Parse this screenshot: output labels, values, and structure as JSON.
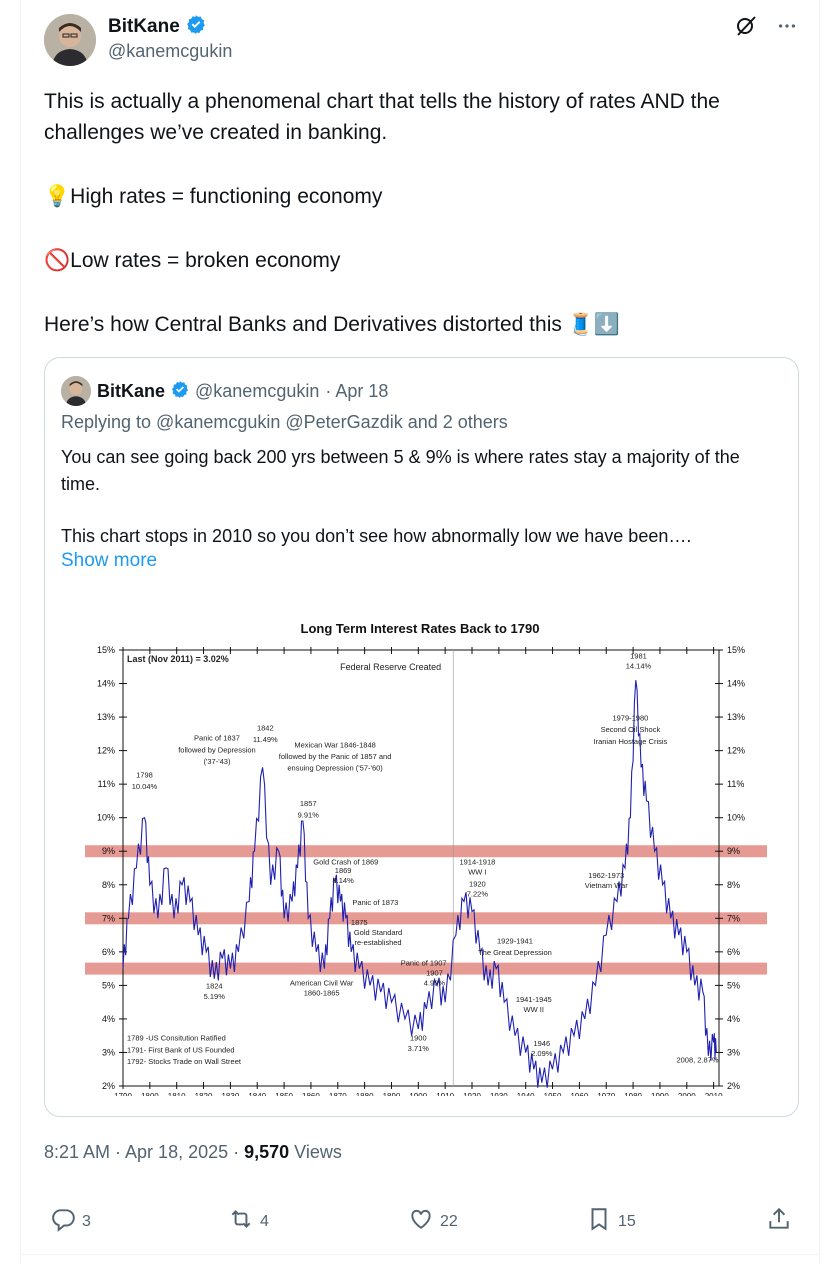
{
  "author": {
    "name": "BitKane",
    "handle": "@kanemcgukin"
  },
  "post": {
    "line1": "This is actually a phenomenal chart that tells the history of rates AND the challenges we’ve created in banking.",
    "line2": "💡High rates  = functioning economy",
    "line3": "🚫Low rates = broken economy",
    "line4": "Here’s how Central Banks and Derivatives distorted this 🧵⬇️"
  },
  "quote": {
    "name": "BitKane",
    "handle": "@kanemcgukin",
    "date": "· Apr 18",
    "reply": "Replying to @kanemcgukin @PeterGazdik and 2 others",
    "text1": "You can see going back 200 yrs between 5 & 9% is where rates stay a majority of the time.",
    "text2": "This chart stops in 2010 so you don’t see how abnormally low we have been….",
    "show_more": "Show more"
  },
  "chart_data": {
    "type": "line",
    "title": "Long Term Interest Rates Back to 1790",
    "xlim": [
      1790,
      2012
    ],
    "ylim": [
      2,
      15
    ],
    "x_ticks": [
      1790,
      1800,
      1810,
      1820,
      1830,
      1840,
      1850,
      1860,
      1870,
      1880,
      1890,
      1900,
      1910,
      1920,
      1930,
      1940,
      1950,
      1960,
      1970,
      1980,
      1990,
      2000,
      2010
    ],
    "y_ticks": [
      "2%",
      "3%",
      "4%",
      "5%",
      "6%",
      "7%",
      "8%",
      "9%",
      "10%",
      "11%",
      "12%",
      "13%",
      "14%",
      "15%"
    ],
    "bands": [
      9,
      7,
      5.5
    ],
    "points": [
      [
        1790,
        5.5
      ],
      [
        1792,
        7
      ],
      [
        1795,
        8.5
      ],
      [
        1798,
        10
      ],
      [
        1800,
        8
      ],
      [
        1803,
        7
      ],
      [
        1806,
        8.5
      ],
      [
        1809,
        7
      ],
      [
        1812,
        8
      ],
      [
        1815,
        7.5
      ],
      [
        1818,
        6.5
      ],
      [
        1821,
        6
      ],
      [
        1824,
        5.2
      ],
      [
        1827,
        5.8
      ],
      [
        1830,
        5.5
      ],
      [
        1833,
        6
      ],
      [
        1837,
        7.5
      ],
      [
        1839,
        9
      ],
      [
        1842,
        11.5
      ],
      [
        1845,
        8
      ],
      [
        1848,
        9
      ],
      [
        1850,
        7
      ],
      [
        1853,
        7.5
      ],
      [
        1855,
        8.5
      ],
      [
        1857,
        9.9
      ],
      [
        1859,
        7
      ],
      [
        1862,
        6
      ],
      [
        1865,
        5.5
      ],
      [
        1867,
        7
      ],
      [
        1869,
        8.1
      ],
      [
        1871,
        7.5
      ],
      [
        1873,
        7
      ],
      [
        1875,
        6
      ],
      [
        1878,
        5.5
      ],
      [
        1882,
        5
      ],
      [
        1886,
        4.8
      ],
      [
        1890,
        4.5
      ],
      [
        1895,
        4
      ],
      [
        1900,
        3.7
      ],
      [
        1903,
        4.3
      ],
      [
        1907,
        5
      ],
      [
        1910,
        4.5
      ],
      [
        1914,
        6.5
      ],
      [
        1917,
        7.5
      ],
      [
        1920,
        7.2
      ],
      [
        1923,
        6
      ],
      [
        1926,
        5
      ],
      [
        1929,
        5.5
      ],
      [
        1932,
        4.5
      ],
      [
        1936,
        3.5
      ],
      [
        1940,
        3
      ],
      [
        1943,
        2.5
      ],
      [
        1946,
        2.1
      ],
      [
        1950,
        2.5
      ],
      [
        1954,
        3
      ],
      [
        1958,
        3.5
      ],
      [
        1962,
        4
      ],
      [
        1966,
        5
      ],
      [
        1970,
        6.5
      ],
      [
        1974,
        7.5
      ],
      [
        1977,
        8.5
      ],
      [
        1979,
        10
      ],
      [
        1981,
        14.1
      ],
      [
        1983,
        11.5
      ],
      [
        1985,
        10.5
      ],
      [
        1988,
        9
      ],
      [
        1991,
        8
      ],
      [
        1994,
        7
      ],
      [
        1997,
        6.5
      ],
      [
        2000,
        6
      ],
      [
        2003,
        5
      ],
      [
        2006,
        4.8
      ],
      [
        2008,
        2.9
      ],
      [
        2010,
        3.3
      ],
      [
        2011,
        3
      ]
    ],
    "annotations": {
      "last": "Last (Nov 2011) = 3.02%",
      "fed": "Federal Reserve Created",
      "a1798": "1798",
      "a1798v": "10.04%",
      "panic1837a": "Panic of 1837",
      "panic1837b": "followed by Depression",
      "panic1837c": "('37-'43)",
      "a1842": "1842",
      "a1842v": "11.49%",
      "mex1": "Mexican War 1846-1848",
      "mex2": "followed by the Panic of 1857 and",
      "mex3": "ensuing Depression ('57-'60)",
      "a1857": "1857",
      "a1857v": "9.91%",
      "gold1869": "Gold Crash of 1869",
      "a1869": "1869",
      "a1869v": "8.14%",
      "panic1873": "Panic of 1873",
      "a1875": "1875",
      "gold_std1": "Gold Standard",
      "gold_std2": "re-established",
      "panic1907": "Panic of 1907",
      "a1907": "1907",
      "a1907v": "4.99%",
      "ww1a": "1914-1918",
      "ww1b": "WW I",
      "a1920": "1920",
      "a1920v": "7.22%",
      "dep1": "1929-1941",
      "dep2": "The Great Depression",
      "ww2a": "1941-1945",
      "ww2b": "WW II",
      "a1946": "1946",
      "a1946v": "2.09%",
      "civil1": "American Civil War",
      "civil2": "1860-1865",
      "a1824": "1824",
      "a1824v": "5.19%",
      "a1900": "1900",
      "a1900v": "3.71%",
      "viet1": "1962-1973",
      "viet2": "Vietnam War",
      "oil1": "1979-1980",
      "oil2": "Second Oil Shock",
      "oil3": "Iranian Hostage Crisis",
      "a1981": "1981",
      "a1981v": "14.14%",
      "a2008": "2008, 2.87%",
      "n1789": "1789 -US Consitution Ratified",
      "n1791": "1791- First Bank of US Founded",
      "n1792": "1792- Stocks Trade on Wall Street"
    }
  },
  "meta": {
    "time": "8:21 AM · Apr 18, 2025 · ",
    "views_count": "9,570",
    "views_label": " Views"
  },
  "actions": {
    "replies": "3",
    "reposts": "4",
    "likes": "22",
    "bookmarks": "15"
  },
  "colors": {
    "accent": "#1d9bf0",
    "line": "#2020b0",
    "band": "#d9645a"
  }
}
